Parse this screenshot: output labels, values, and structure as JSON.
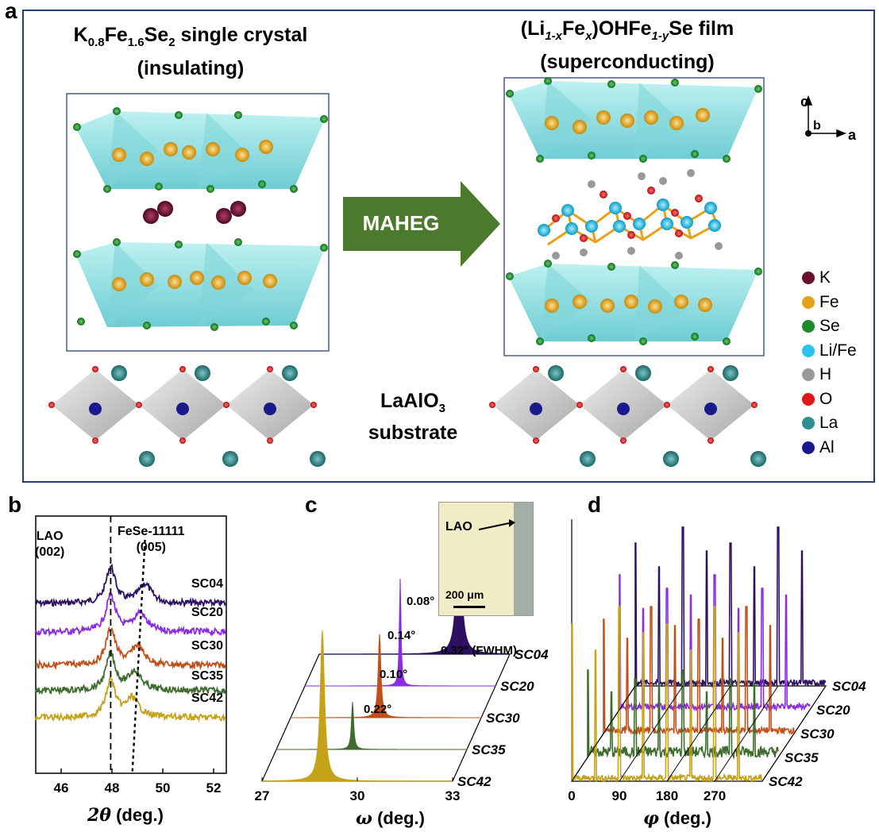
{
  "panel_a": {
    "letter": "a",
    "left_title_line1": "K0.8Fe1.6Se2 single crystal",
    "left_title_line2": "(insulating)",
    "right_title_line1": "(Li1-xFex)OHFe1-ySe film",
    "right_title_line2": "(superconducting)",
    "arrow_label": "MAHEG",
    "substrate_line1": "LaAlO3",
    "substrate_line2": "substrate",
    "axes": {
      "c": "c",
      "b": "b",
      "a": "a"
    },
    "legend": [
      {
        "label": "K",
        "color": "#6b0f2f"
      },
      {
        "label": "Fe",
        "color": "#e2a21b"
      },
      {
        "label": "Se",
        "color": "#1e8a2a"
      },
      {
        "label": "Li/Fe",
        "color": "#28c4ef"
      },
      {
        "label": "H",
        "color": "#9a9a9a"
      },
      {
        "label": "O",
        "color": "#e0171b"
      },
      {
        "label": "La",
        "color": "#2f8f8f"
      },
      {
        "label": "Al",
        "color": "#1a1a8c"
      }
    ]
  },
  "panel_b": {
    "letter": "b",
    "peak1_name": "LAO",
    "peak1_index": "(002)",
    "peak2_name": "FeSe-11111",
    "peak2_index": "(005)",
    "xlabel": "2θ (deg.)",
    "xlabel_symbol": "2θ",
    "xlabel_unit": "(deg.)",
    "xticks": [
      "46",
      "48",
      "50",
      "52"
    ]
  },
  "panel_c": {
    "letter": "c",
    "inset_label": "LAO",
    "scale_bar": "200 μm",
    "fwhm_note": "0.32° (FWHM)",
    "fwhm": [
      "0.08°",
      "0.14°",
      "0.10°",
      "0.22°"
    ],
    "xlabel_symbol": "ω",
    "xlabel_unit": "(deg.)",
    "xticks": [
      "27",
      "30",
      "33"
    ]
  },
  "panel_d": {
    "letter": "d",
    "xlabel_symbol": "φ",
    "xlabel_unit": "(deg.)",
    "xticks": [
      "0",
      "90",
      "180",
      "270"
    ]
  },
  "chart_data": [
    {
      "type": "line",
      "panel": "b",
      "xlabel": "2θ (deg.)",
      "ylabel": "",
      "xlim": [
        45,
        52.5
      ],
      "x_ticks": [
        46,
        48,
        50,
        52
      ],
      "peak_positions": {
        "LAO (002)": 47.95,
        "FeSe-11111 (005)": [
          49.3,
          49.1,
          49.0,
          48.9,
          48.8
        ]
      },
      "series": [
        {
          "name": "SC04",
          "color": "#2d1060"
        },
        {
          "name": "SC20",
          "color": "#8b2be2"
        },
        {
          "name": "SC30",
          "color": "#c0501a"
        },
        {
          "name": "SC35",
          "color": "#3e6b2e"
        },
        {
          "name": "SC42",
          "color": "#c4a21a"
        }
      ]
    },
    {
      "type": "line",
      "panel": "c",
      "xlabel": "ω (deg.)",
      "xlim": [
        27,
        33
      ],
      "x_ticks": [
        27,
        30,
        33
      ],
      "series": [
        {
          "name": "SC04",
          "fwhm": "0.32°",
          "color": "#2d1060"
        },
        {
          "name": "SC20",
          "fwhm": "0.08°",
          "color": "#8b2be2"
        },
        {
          "name": "SC30",
          "fwhm": "0.14°",
          "color": "#c0501a"
        },
        {
          "name": "SC35",
          "fwhm": "0.10°",
          "color": "#3e6b2e"
        },
        {
          "name": "SC42",
          "fwhm": "0.22°",
          "color": "#c4a21a"
        }
      ]
    },
    {
      "type": "line",
      "panel": "d",
      "xlabel": "φ (deg.)",
      "xlim": [
        0,
        360
      ],
      "x_ticks": [
        0,
        90,
        180,
        270
      ],
      "peak_positions_deg": [
        0,
        90,
        180,
        270
      ],
      "series": [
        {
          "name": "SC04",
          "color": "#2d1060"
        },
        {
          "name": "SC20",
          "color": "#8b2be2"
        },
        {
          "name": "SC30",
          "color": "#c0501a"
        },
        {
          "name": "SC35",
          "color": "#3e6b2e"
        },
        {
          "name": "SC42",
          "color": "#c4a21a"
        }
      ]
    }
  ]
}
